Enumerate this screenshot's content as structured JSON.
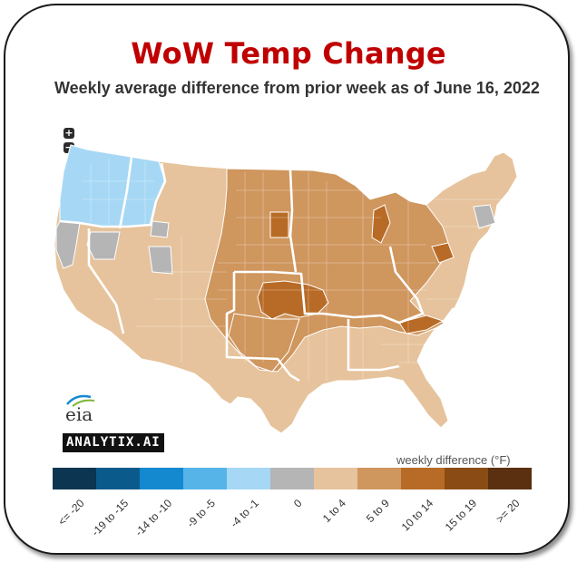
{
  "title": "WoW Temp Change",
  "subtitle": "Weekly average difference from prior week as of June 16, 2022",
  "zoom": {
    "in_label": "+",
    "out_label": "−"
  },
  "logo_text": "eia",
  "brand_text": "ANALYTIX.AI",
  "legend": {
    "title": "weekly difference (°F)",
    "bins": [
      {
        "label": "<= -20",
        "color": "#0b3550"
      },
      {
        "label": "-19 to -15",
        "color": "#0a5b8c"
      },
      {
        "label": "-14 to -10",
        "color": "#1489d0"
      },
      {
        "label": "-9 to -5",
        "color": "#56b4e9"
      },
      {
        "label": "-4 to -1",
        "color": "#a6d8f5"
      },
      {
        "label": "0",
        "color": "#b5b5b5"
      },
      {
        "label": "1 to 4",
        "color": "#e6c39c"
      },
      {
        "label": "5 to 9",
        "color": "#cf965e"
      },
      {
        "label": "10 to 14",
        "color": "#b86b26"
      },
      {
        "label": "15 to 19",
        "color": "#8a4c14"
      },
      {
        "label": ">= 20",
        "color": "#5a3010"
      }
    ]
  },
  "regions": [
    {
      "name": "Pacific Northwest",
      "bin": "-4 to -1"
    },
    {
      "name": "Northern California",
      "bin": "0"
    },
    {
      "name": "Nevada",
      "bin": "0"
    },
    {
      "name": "Southwest",
      "bin": "1 to 4"
    },
    {
      "name": "Northern Plains",
      "bin": "5 to 9"
    },
    {
      "name": "Central Plains",
      "bin": "10 to 14"
    },
    {
      "name": "Midwest",
      "bin": "5 to 9"
    },
    {
      "name": "Northeast",
      "bin": "1 to 4"
    },
    {
      "name": "Southeast",
      "bin": "1 to 4"
    },
    {
      "name": "Texas",
      "bin": "1 to 4"
    }
  ]
}
